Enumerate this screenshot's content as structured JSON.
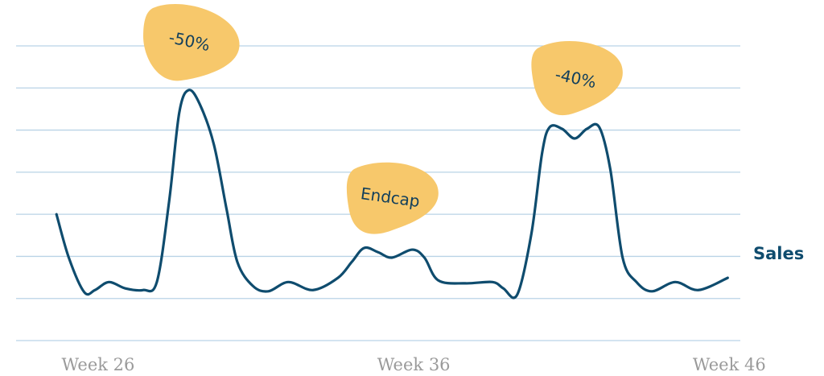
{
  "chart_data": {
    "type": "line",
    "annotations": [
      "-50%",
      "Endcap",
      "-40%"
    ],
    "xticks": [
      {
        "value": 26,
        "label": "Week 26"
      },
      {
        "value": 36,
        "label": "Week 36"
      },
      {
        "value": 46,
        "label": "Week 46"
      }
    ],
    "xlim": [
      23.4,
      46.35
    ],
    "ylim": [
      0,
      7
    ],
    "yticks": [
      0,
      1,
      2,
      3,
      4,
      5,
      6,
      7
    ],
    "grid": true,
    "x": [
      24.68,
      25.07,
      25.56,
      25.9,
      26.34,
      26.86,
      27.42,
      27.86,
      28.25,
      28.57,
      28.87,
      29.23,
      29.67,
      30.07,
      30.41,
      30.9,
      31.39,
      32.03,
      32.81,
      33.6,
      34.04,
      34.43,
      34.87,
      35.31,
      35.95,
      36.34,
      36.78,
      37.64,
      38.5,
      38.84,
      39.28,
      39.73,
      40.07,
      40.31,
      40.7,
      41.1,
      41.49,
      41.88,
      42.23,
      42.62,
      43.06,
      43.55,
      44.29,
      45.02,
      45.95
    ],
    "series": [
      {
        "name": "Sales",
        "color": "#0f4c6e",
        "values": [
          3.0,
          1.97,
          1.15,
          1.2,
          1.39,
          1.24,
          1.2,
          1.39,
          3.31,
          5.41,
          5.95,
          5.6,
          4.65,
          3.12,
          1.87,
          1.3,
          1.17,
          1.39,
          1.2,
          1.49,
          1.87,
          2.2,
          2.1,
          1.97,
          2.16,
          1.97,
          1.43,
          1.36,
          1.39,
          1.24,
          1.09,
          2.54,
          4.46,
          5.07,
          5.03,
          4.8,
          5.03,
          5.07,
          4.07,
          1.97,
          1.39,
          1.17,
          1.39,
          1.2,
          1.49
        ]
      }
    ]
  }
}
